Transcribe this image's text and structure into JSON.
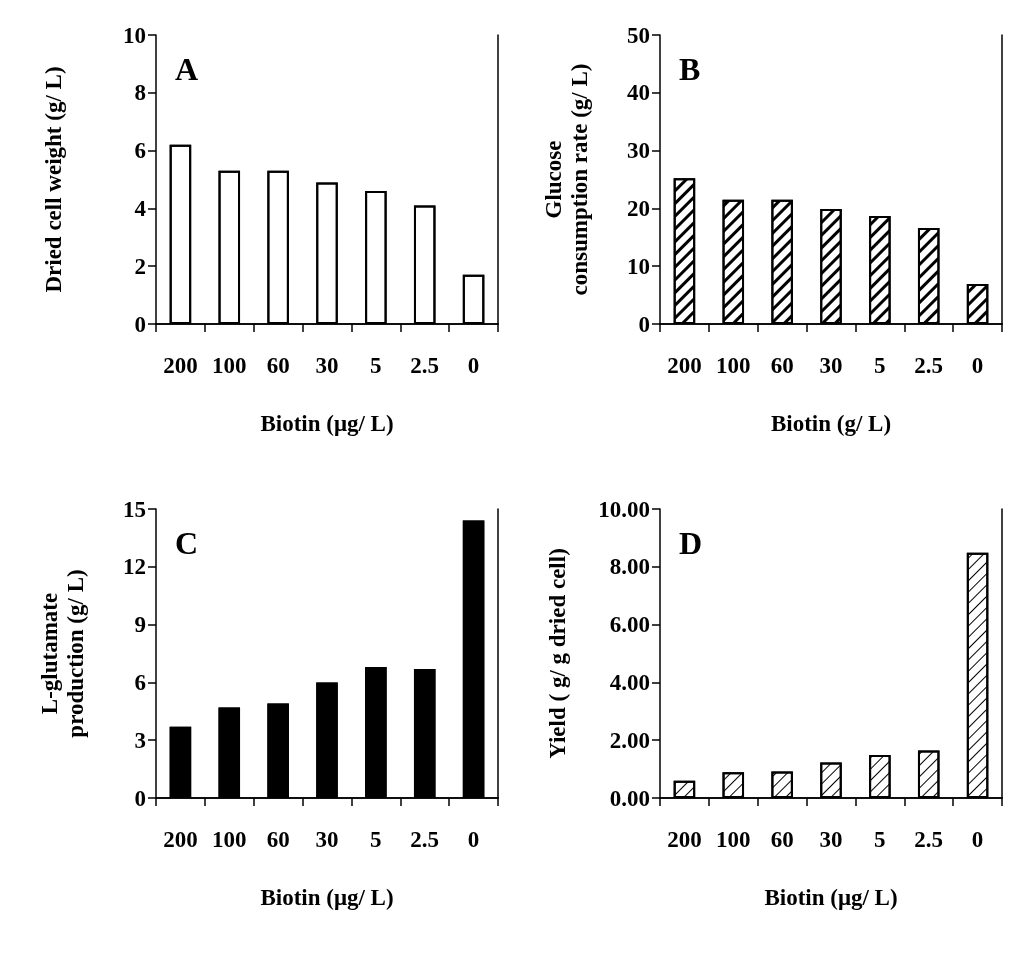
{
  "chart_data": [
    {
      "type": "bar",
      "title": "A",
      "categories": [
        "200",
        "100",
        "60",
        "30",
        "5",
        "2.5",
        "0"
      ],
      "xlabel": "Biotin (μg/ L)",
      "ylabel": "Dried cell weight (g/ L)",
      "color": "#ffffff",
      "values": [
        6.2,
        5.3,
        5.3,
        4.9,
        4.6,
        4.1,
        1.7
      ],
      "ylim": [
        0,
        10
      ],
      "yticks": [
        0,
        2,
        4,
        6,
        8,
        10
      ],
      "grid": false
    },
    {
      "type": "bar",
      "title": "B",
      "categories": [
        "200",
        "100",
        "60",
        "30",
        "5",
        "2.5",
        "0"
      ],
      "xlabel": "Biotin (g/ L)",
      "ylabel": "Glucose\nconsumption rate (g/ L)",
      "color": "#ffffff",
      "values": [
        25.2,
        21.5,
        21.5,
        19.9,
        18.7,
        16.6,
        6.9
      ],
      "ylim": [
        0,
        50
      ],
      "yticks": [
        0,
        10,
        20,
        30,
        40,
        50
      ],
      "grid": false
    },
    {
      "type": "bar",
      "title": "C",
      "categories": [
        "200",
        "100",
        "60",
        "30",
        "5",
        "2.5",
        "0"
      ],
      "xlabel": "Biotin (μg/ L)",
      "ylabel": "L-glutamate\nproduction (g/ L)",
      "color": "#000000",
      "values": [
        3.7,
        4.7,
        4.9,
        6.0,
        6.8,
        6.7,
        14.4
      ],
      "ylim": [
        0,
        15
      ],
      "yticks": [
        0,
        3,
        6,
        9,
        12,
        15
      ],
      "grid": false
    },
    {
      "type": "bar",
      "title": "D",
      "categories": [
        "200",
        "100",
        "60",
        "30",
        "5",
        "2.5",
        "0"
      ],
      "xlabel": "Biotin (μg/ L)",
      "ylabel": "Yield ( g/ g dried cell)",
      "color": "#ffffff",
      "values": [
        0.6,
        0.89,
        0.92,
        1.23,
        1.49,
        1.64,
        8.49
      ],
      "ylim": [
        0,
        10
      ],
      "yticks": [
        {
          "value": 0,
          "label": "0.00"
        },
        {
          "value": 2,
          "label": "2.00"
        },
        {
          "value": 4,
          "label": "4.00"
        },
        {
          "value": 6,
          "label": "6.00"
        },
        {
          "value": 8,
          "label": "8.00"
        },
        {
          "value": 10,
          "label": "10.00"
        }
      ],
      "grid": false
    }
  ]
}
